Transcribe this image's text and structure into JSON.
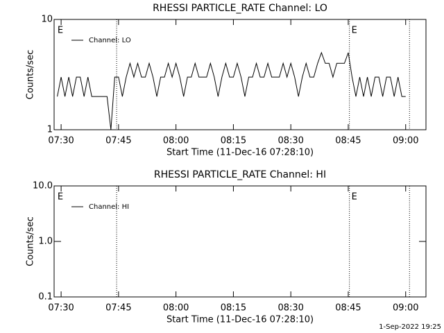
{
  "chart_data": [
    {
      "type": "line",
      "title": "RHESSI PARTICLE_RATE Channel: LO",
      "xlabel": "Start Time (11-Dec-16 07:28:10)",
      "ylabel": "Counts/sec",
      "log_y": true,
      "ylim": [
        1,
        10
      ],
      "yticks": [
        1,
        10
      ],
      "xlim": [
        448.17,
        545.3
      ],
      "xticks": [
        {
          "value": 450,
          "label": "07:30"
        },
        {
          "value": 465,
          "label": "07:45"
        },
        {
          "value": 480,
          "label": "08:00"
        },
        {
          "value": 495,
          "label": "08:15"
        },
        {
          "value": 510,
          "label": "08:30"
        },
        {
          "value": 525,
          "label": "08:45"
        },
        {
          "value": 540,
          "label": "09:00"
        }
      ],
      "vlines": [
        464.5,
        525.3,
        541
      ],
      "annotations": [
        {
          "x": 448.5,
          "label": "E"
        },
        {
          "x": 525.3,
          "label": "E"
        }
      ],
      "legend": "upper left",
      "x": [
        449,
        450,
        451,
        452,
        453,
        454,
        455,
        456,
        457,
        458,
        459,
        460,
        461,
        462,
        463,
        464,
        465,
        466,
        467,
        468,
        469,
        470,
        471,
        472,
        473,
        474,
        475,
        476,
        477,
        478,
        479,
        480,
        481,
        482,
        483,
        484,
        485,
        486,
        487,
        488,
        489,
        490,
        491,
        492,
        493,
        494,
        495,
        496,
        497,
        498,
        499,
        500,
        501,
        502,
        503,
        504,
        505,
        506,
        507,
        508,
        509,
        510,
        511,
        512,
        513,
        514,
        515,
        516,
        517,
        518,
        519,
        520,
        521,
        522,
        523,
        524,
        525,
        526,
        527,
        528,
        529,
        530,
        531,
        532,
        533,
        534,
        535,
        536,
        537,
        538,
        539,
        540
      ],
      "series": [
        {
          "name": "Channel: LO",
          "color": "#000000",
          "values": [
            2,
            3,
            2,
            3,
            2,
            3,
            3,
            2,
            3,
            2,
            2,
            2,
            2,
            2,
            1,
            3,
            3,
            2,
            3,
            4,
            3,
            4,
            3,
            3,
            4,
            3,
            2,
            3,
            3,
            4,
            3,
            4,
            3,
            2,
            3,
            3,
            4,
            3,
            3,
            3,
            4,
            3,
            2,
            3,
            4,
            3,
            3,
            4,
            3,
            2,
            3,
            3,
            4,
            3,
            3,
            4,
            3,
            3,
            3,
            4,
            3,
            4,
            3,
            2,
            3,
            4,
            3,
            3,
            4,
            5,
            4,
            4,
            3,
            4,
            4,
            4,
            5,
            3,
            2,
            3,
            2,
            3,
            2,
            3,
            3,
            2,
            3,
            3,
            2,
            3,
            2,
            2
          ]
        }
      ]
    },
    {
      "type": "line",
      "title": "RHESSI PARTICLE_RATE Channel: HI",
      "xlabel": "Start Time (11-Dec-16 07:28:10)",
      "ylabel": "Counts/sec",
      "log_y": true,
      "ylim": [
        0.1,
        10
      ],
      "yticks": [
        {
          "value": 0.1,
          "label": "0.1"
        },
        {
          "value": 1,
          "label": "1.0"
        },
        {
          "value": 10,
          "label": "10.0"
        }
      ],
      "xlim": [
        448.17,
        545.3
      ],
      "xticks": [
        {
          "value": 450,
          "label": "07:30"
        },
        {
          "value": 465,
          "label": "07:45"
        },
        {
          "value": 480,
          "label": "08:00"
        },
        {
          "value": 495,
          "label": "08:15"
        },
        {
          "value": 510,
          "label": "08:30"
        },
        {
          "value": 525,
          "label": "08:45"
        },
        {
          "value": 540,
          "label": "09:00"
        }
      ],
      "vlines": [
        464.5,
        525.3,
        541
      ],
      "annotations": [
        {
          "x": 448.5,
          "label": "E"
        },
        {
          "x": 525.3,
          "label": "E"
        }
      ],
      "legend": "upper left",
      "x": [],
      "series": [
        {
          "name": "Channel: HI",
          "color": "#000000",
          "values": []
        }
      ]
    }
  ],
  "footer": "1-Sep-2022 19:25"
}
